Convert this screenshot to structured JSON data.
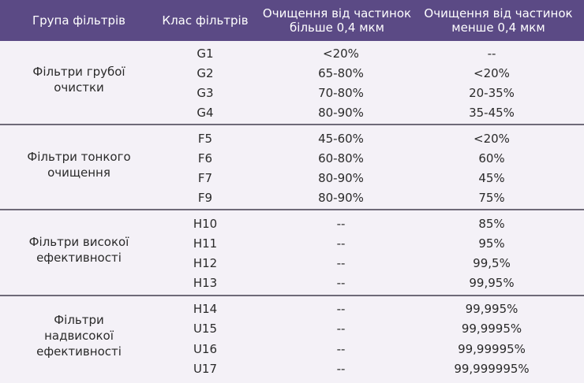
{
  "headers": {
    "group": "Група фільтрів",
    "class": "Клас фільтрів",
    "above_line1": "Очищення від частинок",
    "above_line2": "більше 0,4 мкм",
    "below_line1": "Очищення від частинок",
    "below_line2": "менше 0,4 мкм"
  },
  "groups": [
    {
      "label_lines": [
        "Фільтри грубої",
        "очистки"
      ],
      "rows": [
        {
          "cls": "G1",
          "above": "<20%",
          "below": "--"
        },
        {
          "cls": "G2",
          "above": "65-80%",
          "below": "<20%"
        },
        {
          "cls": "G3",
          "above": "70-80%",
          "below": "20-35%"
        },
        {
          "cls": "G4",
          "above": "80-90%",
          "below": "35-45%"
        }
      ]
    },
    {
      "label_lines": [
        "Фільтри тонкого",
        "очищення"
      ],
      "rows": [
        {
          "cls": "F5",
          "above": "45-60%",
          "below": "<20%"
        },
        {
          "cls": "F6",
          "above": "60-80%",
          "below": "60%"
        },
        {
          "cls": "F7",
          "above": "80-90%",
          "below": "45%"
        },
        {
          "cls": "F9",
          "above": "80-90%",
          "below": "75%"
        }
      ]
    },
    {
      "label_lines": [
        "Фільтри високої",
        "ефективності"
      ],
      "rows": [
        {
          "cls": "H10",
          "above": "--",
          "below": "85%"
        },
        {
          "cls": "H11",
          "above": "--",
          "below": "95%"
        },
        {
          "cls": "H12",
          "above": "--",
          "below": "99,5%"
        },
        {
          "cls": "H13",
          "above": "--",
          "below": "99,95%"
        }
      ]
    },
    {
      "label_lines": [
        "Фільтри",
        "надвисокої",
        "ефективності"
      ],
      "rows": [
        {
          "cls": "H14",
          "above": "--",
          "below": "99,995%"
        },
        {
          "cls": "U15",
          "above": "--",
          "below": "99,9995%"
        },
        {
          "cls": "U16",
          "above": "--",
          "below": "99,99995%"
        },
        {
          "cls": "U17",
          "above": "--",
          "below": "99,999995%"
        }
      ]
    }
  ]
}
